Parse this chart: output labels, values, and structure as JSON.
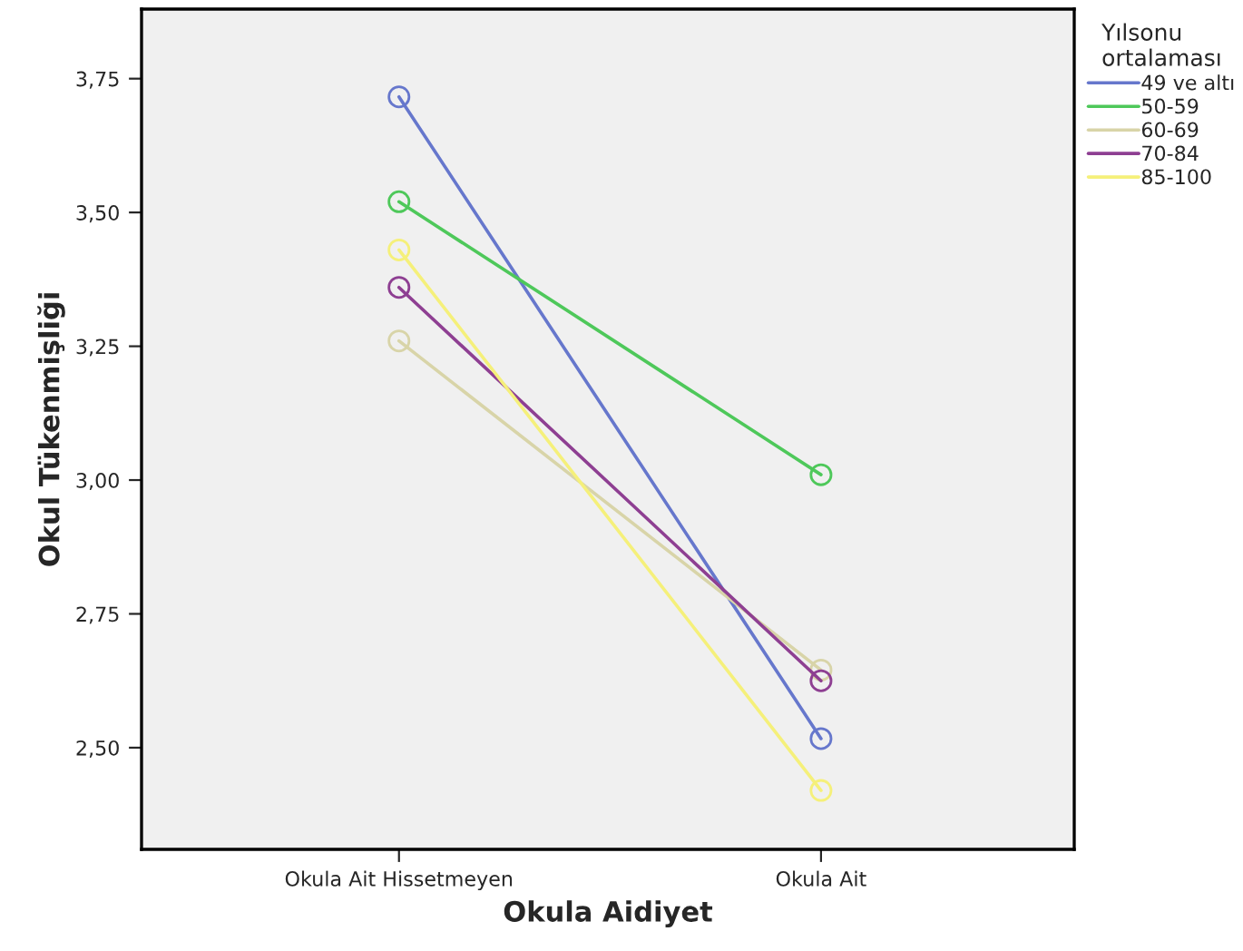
{
  "chart_data": {
    "type": "line",
    "xlabel": "Okula Aidiyet",
    "ylabel": "Okul Tükenmişliği",
    "legend_title": "Yılsonu\nortalaması",
    "legend": "right",
    "marker": "circle",
    "grid": false,
    "categories": [
      "Okula Ait Hissetmeyen",
      "Okula Ait"
    ],
    "ylim": [
      2.31,
      3.88
    ],
    "yticks": [
      {
        "value": 2.5,
        "label": "2,50"
      },
      {
        "value": 2.75,
        "label": "2,75"
      },
      {
        "value": 3.0,
        "label": "3,00"
      },
      {
        "value": 3.25,
        "label": "3,25"
      },
      {
        "value": 3.5,
        "label": "3,50"
      },
      {
        "value": 3.75,
        "label": "3,75"
      }
    ],
    "series": [
      {
        "name": "49 ve altı",
        "color": "#6677cc",
        "values": [
          3.716,
          2.517
        ]
      },
      {
        "name": "50-59",
        "color": "#4ec85a",
        "values": [
          3.52,
          3.01
        ]
      },
      {
        "name": "60-69",
        "color": "#d8d4a8",
        "values": [
          3.26,
          2.645
        ]
      },
      {
        "name": "70-84",
        "color": "#8e3f92",
        "values": [
          3.36,
          2.625
        ]
      },
      {
        "name": "85-100",
        "color": "#f5f07a",
        "values": [
          3.43,
          2.42
        ]
      }
    ]
  }
}
